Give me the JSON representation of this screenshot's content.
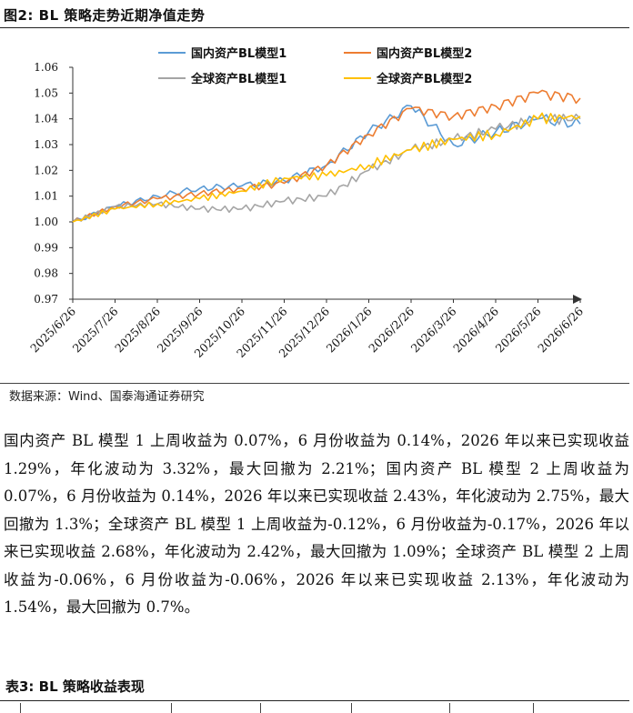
{
  "figure": {
    "title": "图2:  BL 策略走势近期净值走势",
    "source": "数据来源：Wind、国泰海通证券研究"
  },
  "chart_data": {
    "type": "line",
    "title": "",
    "xlabel": "",
    "ylabel": "",
    "ylim": [
      0.97,
      1.06
    ],
    "yticks": [
      "0.97",
      "0.98",
      "0.99",
      "1.00",
      "1.01",
      "1.02",
      "1.03",
      "1.04",
      "1.05",
      "1.06"
    ],
    "x": [
      "2025/6/26",
      "2025/7/26",
      "2025/8/26",
      "2025/9/26",
      "2025/10/26",
      "2025/11/26",
      "2025/12/26",
      "2026/1/26",
      "2026/2/26",
      "2026/3/26",
      "2026/4/26",
      "2026/5/26",
      "2026/6/26"
    ],
    "legend_position": "top-center",
    "grid": false,
    "series": [
      {
        "name": "国内资产BL模型1",
        "color": "#5B9BD5",
        "values": [
          1.0,
          1.006,
          1.01,
          1.013,
          1.014,
          1.016,
          1.022,
          1.035,
          1.045,
          1.03,
          1.035,
          1.04,
          1.038
        ]
      },
      {
        "name": "国内资产BL模型2",
        "color": "#ED7D31",
        "values": [
          1.0,
          1.006,
          1.009,
          1.011,
          1.013,
          1.015,
          1.022,
          1.034,
          1.044,
          1.041,
          1.045,
          1.05,
          1.048
        ]
      },
      {
        "name": "全球资产BL模型1",
        "color": "#A5A5A5",
        "values": [
          1.0,
          1.006,
          1.007,
          1.005,
          1.005,
          1.008,
          1.01,
          1.02,
          1.028,
          1.032,
          1.036,
          1.04,
          1.04
        ]
      },
      {
        "name": "全球资产BL模型2",
        "color": "#FFC000",
        "values": [
          1.0,
          1.005,
          1.007,
          1.009,
          1.012,
          1.017,
          1.018,
          1.022,
          1.028,
          1.032,
          1.034,
          1.04,
          1.041
        ]
      }
    ]
  },
  "paragraph": "国内资产 BL 模型 1 上周收益为 0.07%，6 月份收益为 0.14%，2026 年以来已实现收益 1.29%，年化波动为 3.32%，最大回撤为 2.21%；国内资产 BL 模型 2 上周收益为 0.07%，6 月份收益为 0.14%，2026 年以来已实现收益 2.43%，年化波动为 2.75%，最大回撤为 1.3%；全球资产 BL 模型 1 上周收益为-0.12%，6 月份收益为-0.17%，2026 年以来已实现收益 2.68%，年化波动为 2.42%，最大回撤为 1.09%；全球资产 BL 模型 2 上周收益为-0.06%，6 月份收益为-0.06%，2026 年以来已实现收益 2.13%，年化波动为 1.54%，最大回撤为 0.7%。",
  "table": {
    "title": "表3:  BL 策略收益表现"
  }
}
